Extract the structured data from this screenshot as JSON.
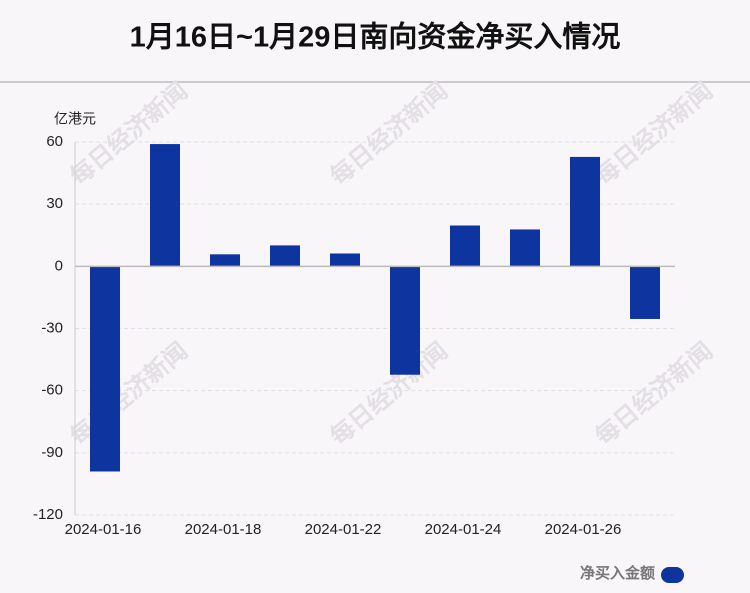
{
  "chart_data": {
    "type": "bar",
    "title": "1月16日~1月29日南向资金净买入情况",
    "y_unit": "亿港元",
    "watermark": "每日经济新闻",
    "categories": [
      "2024-01-16",
      null,
      "2024-01-18",
      null,
      "2024-01-22",
      null,
      "2024-01-24",
      null,
      "2024-01-26",
      null
    ],
    "series": [
      {
        "name": "净买入金额",
        "color": "#0e349f",
        "values": [
          -99,
          59,
          5.8,
          10.1,
          6.2,
          -52.3,
          19.7,
          17.8,
          52.8,
          -25.4
        ]
      }
    ],
    "ylim": [
      -120,
      60
    ],
    "yticks": [
      -120,
      -90,
      -60,
      -30,
      0,
      30,
      60
    ],
    "grid": true,
    "legend": "bottom-right"
  }
}
